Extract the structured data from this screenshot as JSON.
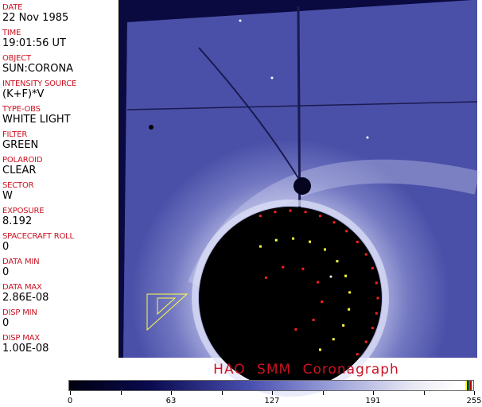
{
  "fields": [
    {
      "label": "DATE",
      "value": "22 Nov 1985"
    },
    {
      "label": "TIME",
      "value": "19:01:56 UT"
    },
    {
      "label": "OBJECT",
      "value": "SUN:CORONA"
    },
    {
      "label": "INTENSITY SOURCE",
      "value": "(K+F)*V"
    },
    {
      "label": "TYPE-OBS",
      "value": "WHITE LIGHT"
    },
    {
      "label": "FILTER",
      "value": "GREEN"
    },
    {
      "label": "POLAROID",
      "value": "CLEAR"
    },
    {
      "label": "SECTOR",
      "value": "W"
    },
    {
      "label": "EXPOSURE",
      "value": "8.192"
    },
    {
      "label": "SPACECRAFT ROLL",
      "value": "0"
    },
    {
      "label": "DATA MIN",
      "value": "0"
    },
    {
      "label": "DATA MAX",
      "value": "2.86E-08"
    },
    {
      "label": "DISP MIN",
      "value": "0"
    },
    {
      "label": "DISP MAX",
      "value": "1.00E-08"
    }
  ],
  "title": "HAO  SMM Coronagraph",
  "colorbar": {
    "ticks": [
      "0",
      "63",
      "127",
      "191",
      "255"
    ],
    "colormap": "dark-navy-to-white",
    "marker_colors": [
      "#ffff00",
      "#0000aa",
      "#00aa00",
      "#aa0000"
    ]
  },
  "colors": {
    "label": "#cc1122",
    "field_bg": "#4a50a8",
    "occulter": "#000000"
  }
}
